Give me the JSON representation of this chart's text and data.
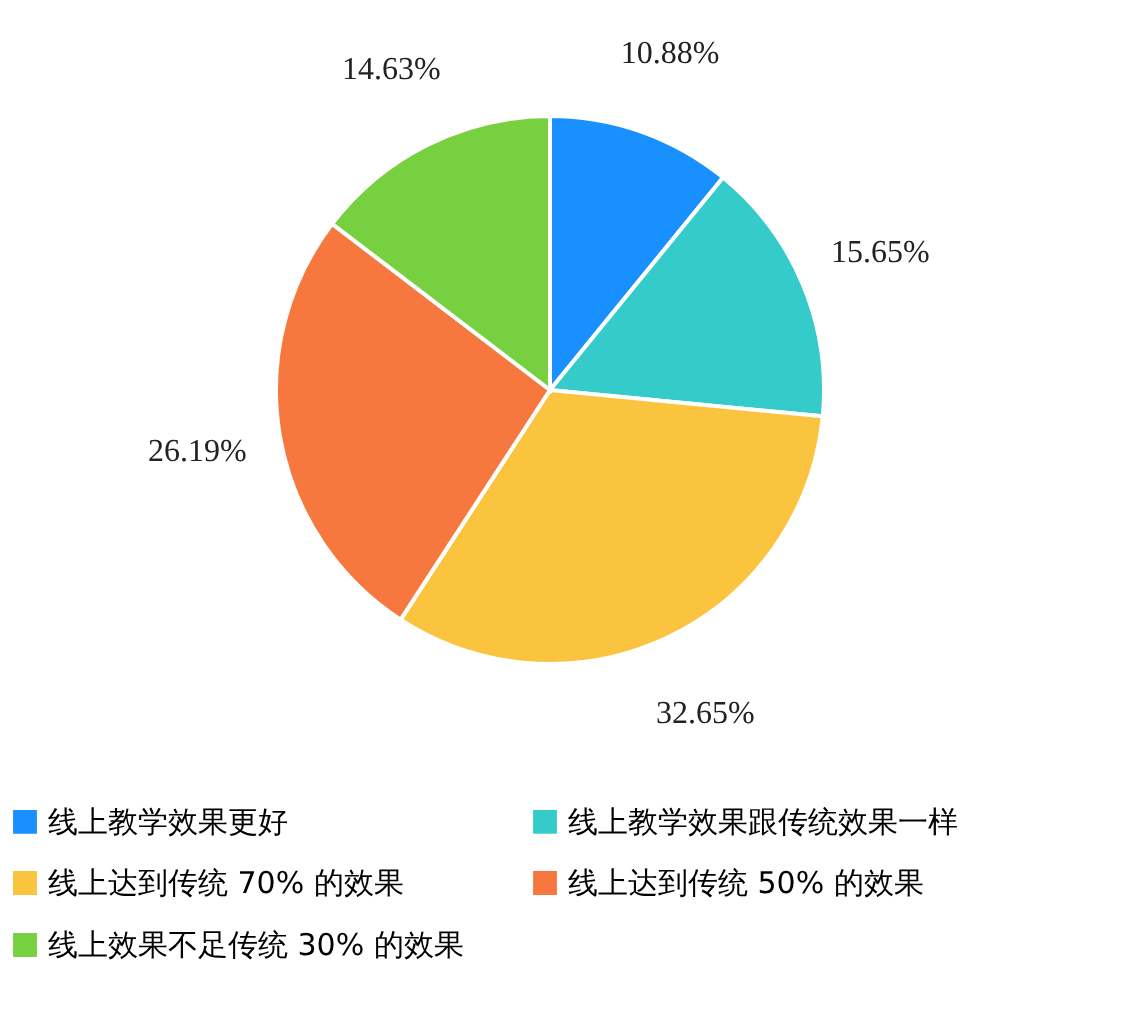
{
  "chart_data": {
    "type": "pie",
    "categories": [
      "线上教学效果更好",
      "线上教学效果跟传统效果一样",
      "线上达到传统 70% 的效果",
      "线上达到传统 50% 的效果",
      "线上效果不足传统 30% 的效果"
    ],
    "values": [
      10.88,
      15.65,
      32.65,
      26.19,
      14.63
    ],
    "value_labels": [
      "10.88%",
      "15.65%",
      "32.65%",
      "26.19%",
      "14.63%"
    ],
    "colors": [
      "#1890ff",
      "#36cbcb",
      "#fbc43f",
      "#f6783f",
      "#76d03f"
    ],
    "legend": "bottom"
  }
}
